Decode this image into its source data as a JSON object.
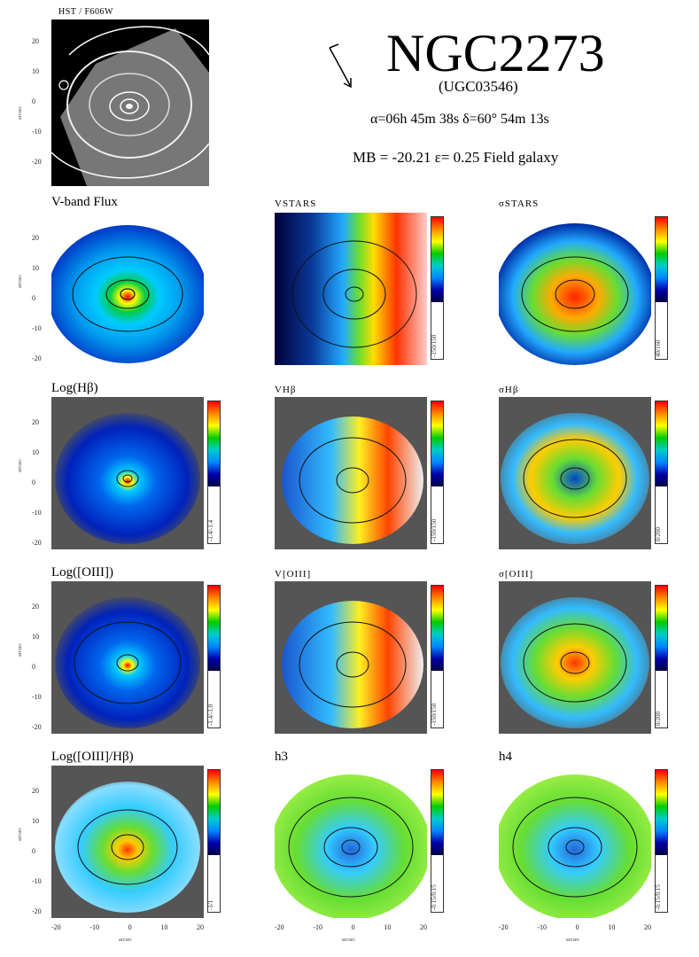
{
  "header": {
    "hst_label": "HST / F606W",
    "galaxy_name": "NGC2273",
    "alt_name": "(UGC03546)",
    "coordinates": "α=06h 45m 38s    δ=60° 54m 13s",
    "properties": "MB = -20.21    ε= 0.25    Field galaxy"
  },
  "panels": {
    "vband": {
      "title": "V-band Flux"
    },
    "vstars": {
      "title": "VSTARS",
      "range": "-150/150"
    },
    "sigstars": {
      "title": "σSTARS",
      "range": "40/160"
    },
    "loghb": {
      "title": "Log(Hβ)",
      "range": "-1.4/-1.4"
    },
    "vhb": {
      "title": "VHβ",
      "range": "-150/150"
    },
    "sighb": {
      "title": "σHβ",
      "range": "0/200"
    },
    "logoiii": {
      "title": "Log([OIII])",
      "range": "-1.4/-1.0"
    },
    "voiii": {
      "title": "V[OIII]",
      "range": "-150/150"
    },
    "sigoiii": {
      "title": "σ[OIII]",
      "range": "0/200"
    },
    "ratio": {
      "title": "Log([OIII]/Hβ)",
      "range": "-1/1"
    },
    "h3": {
      "title": "h3",
      "range": "-0.15/0.15"
    },
    "h4": {
      "title": "h4",
      "range": "-0.15/0.15"
    }
  },
  "axes": {
    "yticks": [
      "20",
      "10",
      "0",
      "-10",
      "-20"
    ],
    "xticks": [
      "-20",
      "-10",
      "0",
      "10",
      "20"
    ],
    "ylabel": "arcsec",
    "xlabel": "arcsec"
  }
}
